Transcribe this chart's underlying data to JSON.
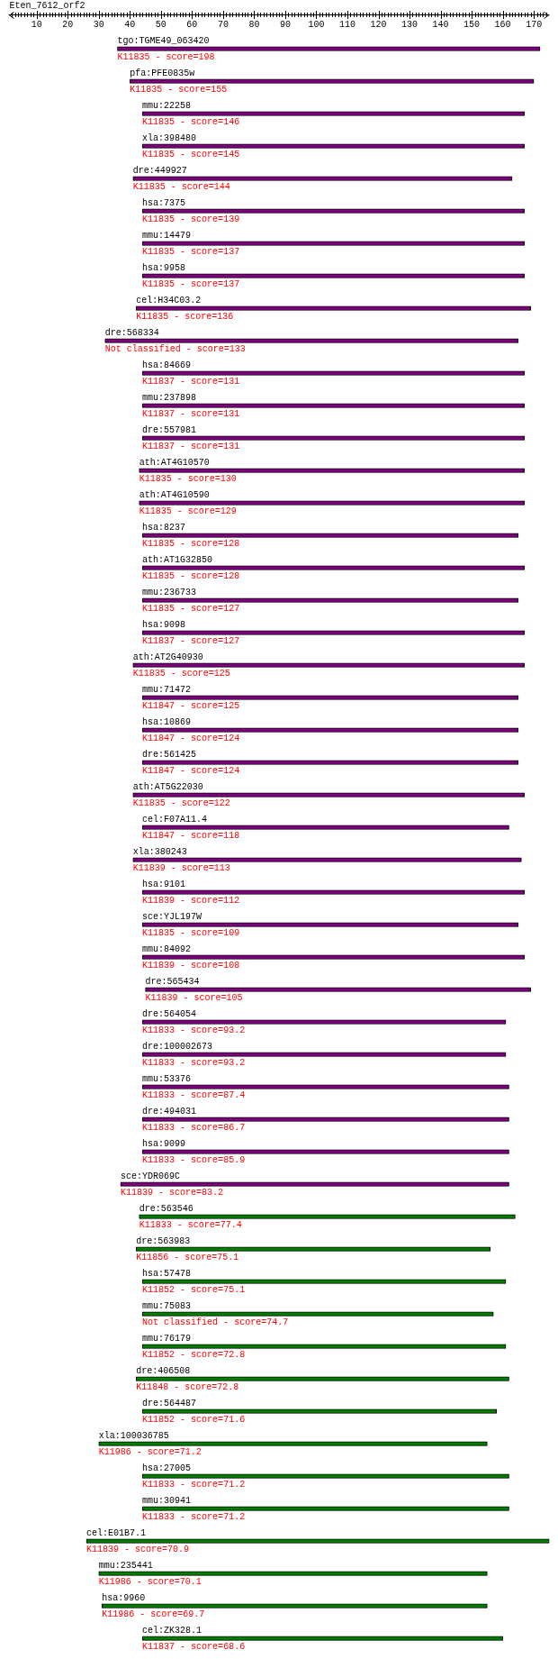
{
  "chart_data": {
    "type": "bar",
    "title": "Eten_7612_orf2",
    "orientation": "horizontal",
    "categories": [
      "tgo:TGME49_063420",
      "pfa:PFE0835w",
      "mmu:22258",
      "xla:398480",
      "dre:449927",
      "hsa:7375",
      "mmu:14479",
      "hsa:9958",
      "cel:H34C03.2",
      "dre:568334",
      "hsa:84669",
      "mmu:237898",
      "dre:557981",
      "ath:AT4G10570",
      "ath:AT4G10590",
      "hsa:8237",
      "ath:AT1G32850",
      "mmu:236733",
      "hsa:9098",
      "ath:AT2G40930",
      "mmu:71472",
      "hsa:10869",
      "dre:561425",
      "ath:AT5G22030",
      "cel:F07A11.4",
      "xla:380243",
      "hsa:9101",
      "sce:YJL197W",
      "mmu:84092",
      "dre:565434",
      "dre:564054",
      "dre:100002673",
      "mmu:53376",
      "dre:494031",
      "hsa:9099",
      "sce:YDR069C",
      "dre:563546",
      "dre:563983",
      "hsa:57478",
      "mmu:75083",
      "mmu:76179",
      "dre:406508",
      "dre:564487",
      "xla:100036785",
      "hsa:27005",
      "mmu:30941",
      "cel:E01B7.1",
      "mmu:235441",
      "hsa:9960",
      "cel:ZK328.1"
    ],
    "base": [
      36,
      40,
      44,
      44,
      41,
      44,
      44,
      44,
      42,
      32,
      44,
      44,
      44,
      43,
      43,
      44,
      44,
      44,
      44,
      41,
      44,
      44,
      44,
      41,
      44,
      41,
      44,
      44,
      44,
      45,
      44,
      44,
      44,
      44,
      44,
      37,
      43,
      42,
      44,
      44,
      44,
      42,
      44,
      30,
      44,
      44,
      26,
      30,
      31,
      44
    ],
    "values": [
      136,
      130,
      123,
      123,
      122,
      123,
      123,
      123,
      127,
      133,
      123,
      123,
      123,
      124,
      124,
      121,
      123,
      121,
      123,
      126,
      121,
      121,
      121,
      126,
      118,
      125,
      123,
      121,
      123,
      124,
      117,
      117,
      118,
      118,
      118,
      125,
      121,
      114,
      117,
      113,
      117,
      120,
      114,
      125,
      118,
      118,
      149,
      125,
      124,
      116
    ],
    "colors": [
      "#800080",
      "#800080",
      "#800080",
      "#800080",
      "#800080",
      "#800080",
      "#800080",
      "#800080",
      "#800080",
      "#800080",
      "#800080",
      "#800080",
      "#800080",
      "#800080",
      "#800080",
      "#800080",
      "#800080",
      "#800080",
      "#800080",
      "#800080",
      "#800080",
      "#800080",
      "#800080",
      "#800080",
      "#800080",
      "#800080",
      "#800080",
      "#800080",
      "#800080",
      "#800080",
      "#800080",
      "#800080",
      "#800080",
      "#800080",
      "#800080",
      "#800080",
      "#008000",
      "#008000",
      "#008000",
      "#008000",
      "#008000",
      "#008000",
      "#008000",
      "#008000",
      "#008000",
      "#008000",
      "#008000",
      "#008000",
      "#008000",
      "#008000"
    ],
    "xlim": [
      1,
      175
    ],
    "xticks": [
      {
        "value": 2,
        "label": null
      },
      {
        "value": 3,
        "label": null
      },
      {
        "value": 4,
        "label": null
      },
      {
        "value": 5,
        "label": null
      },
      {
        "value": 6,
        "label": null
      },
      {
        "value": 7,
        "label": null
      },
      {
        "value": 8,
        "label": null
      },
      {
        "value": 9,
        "label": null
      },
      10,
      {
        "value": 11,
        "label": null
      },
      {
        "value": 12,
        "label": null
      },
      {
        "value": 13,
        "label": null
      },
      {
        "value": 14,
        "label": null
      },
      {
        "value": 15,
        "label": null
      },
      {
        "value": 16,
        "label": null
      },
      {
        "value": 17,
        "label": null
      },
      {
        "value": 18,
        "label": null
      },
      {
        "value": 19,
        "label": null
      },
      20,
      {
        "value": 21,
        "label": null
      },
      {
        "value": 22,
        "label": null
      },
      {
        "value": 23,
        "label": null
      },
      {
        "value": 24,
        "label": null
      },
      {
        "value": 25,
        "label": null
      },
      {
        "value": 26,
        "label": null
      },
      {
        "value": 27,
        "label": null
      },
      {
        "value": 28,
        "label": null
      },
      {
        "value": 29,
        "label": null
      },
      30,
      {
        "value": 31,
        "label": null
      },
      {
        "value": 32,
        "label": null
      },
      {
        "value": 33,
        "label": null
      },
      {
        "value": 34,
        "label": null
      },
      {
        "value": 35,
        "label": null
      },
      {
        "value": 36,
        "label": null
      },
      {
        "value": 37,
        "label": null
      },
      {
        "value": 38,
        "label": null
      },
      {
        "value": 39,
        "label": null
      },
      40,
      {
        "value": 41,
        "label": null
      },
      {
        "value": 42,
        "label": null
      },
      {
        "value": 43,
        "label": null
      },
      {
        "value": 44,
        "label": null
      },
      {
        "value": 45,
        "label": null
      },
      {
        "value": 46,
        "label": null
      },
      {
        "value": 47,
        "label": null
      },
      {
        "value": 48,
        "label": null
      },
      {
        "value": 49,
        "label": null
      },
      50,
      {
        "value": 51,
        "label": null
      },
      {
        "value": 52,
        "label": null
      },
      {
        "value": 53,
        "label": null
      },
      {
        "value": 54,
        "label": null
      },
      {
        "value": 55,
        "label": null
      },
      {
        "value": 56,
        "label": null
      },
      {
        "value": 57,
        "label": null
      },
      {
        "value": 58,
        "label": null
      },
      {
        "value": 59,
        "label": null
      },
      60,
      {
        "value": 61,
        "label": null
      },
      {
        "value": 62,
        "label": null
      },
      {
        "value": 63,
        "label": null
      },
      {
        "value": 64,
        "label": null
      },
      {
        "value": 65,
        "label": null
      },
      {
        "value": 66,
        "label": null
      },
      {
        "value": 67,
        "label": null
      },
      {
        "value": 68,
        "label": null
      },
      {
        "value": 69,
        "label": null
      },
      70,
      {
        "value": 71,
        "label": null
      },
      {
        "value": 72,
        "label": null
      },
      {
        "value": 73,
        "label": null
      },
      {
        "value": 74,
        "label": null
      },
      {
        "value": 75,
        "label": null
      },
      {
        "value": 76,
        "label": null
      },
      {
        "value": 77,
        "label": null
      },
      {
        "value": 78,
        "label": null
      },
      {
        "value": 79,
        "label": null
      },
      80,
      {
        "value": 81,
        "label": null
      },
      {
        "value": 82,
        "label": null
      },
      {
        "value": 83,
        "label": null
      },
      {
        "value": 84,
        "label": null
      },
      {
        "value": 85,
        "label": null
      },
      {
        "value": 86,
        "label": null
      },
      {
        "value": 87,
        "label": null
      },
      {
        "value": 88,
        "label": null
      },
      {
        "value": 89,
        "label": null
      },
      90,
      {
        "value": 91,
        "label": null
      },
      {
        "value": 92,
        "label": null
      },
      {
        "value": 93,
        "label": null
      },
      {
        "value": 94,
        "label": null
      },
      {
        "value": 95,
        "label": null
      },
      {
        "value": 96,
        "label": null
      },
      {
        "value": 97,
        "label": null
      },
      {
        "value": 98,
        "label": null
      },
      {
        "value": 99,
        "label": null
      },
      100,
      {
        "value": 101,
        "label": null
      },
      {
        "value": 102,
        "label": null
      },
      {
        "value": 103,
        "label": null
      },
      {
        "value": 104,
        "label": null
      },
      {
        "value": 105,
        "label": null
      },
      {
        "value": 106,
        "label": null
      },
      {
        "value": 107,
        "label": null
      },
      {
        "value": 108,
        "label": null
      },
      {
        "value": 109,
        "label": null
      },
      110,
      {
        "value": 111,
        "label": null
      },
      {
        "value": 112,
        "label": null
      },
      {
        "value": 113,
        "label": null
      },
      {
        "value": 114,
        "label": null
      },
      {
        "value": 115,
        "label": null
      },
      {
        "value": 116,
        "label": null
      },
      {
        "value": 117,
        "label": null
      },
      {
        "value": 118,
        "label": null
      },
      {
        "value": 119,
        "label": null
      },
      120,
      {
        "value": 121,
        "label": null
      },
      {
        "value": 122,
        "label": null
      },
      {
        "value": 123,
        "label": null
      },
      {
        "value": 124,
        "label": null
      },
      {
        "value": 125,
        "label": null
      },
      {
        "value": 126,
        "label": null
      },
      {
        "value": 127,
        "label": null
      },
      {
        "value": 128,
        "label": null
      },
      {
        "value": 129,
        "label": null
      },
      130,
      {
        "value": 131,
        "label": null
      },
      {
        "value": 132,
        "label": null
      },
      {
        "value": 133,
        "label": null
      },
      {
        "value": 134,
        "label": null
      },
      {
        "value": 135,
        "label": null
      },
      {
        "value": 136,
        "label": null
      },
      {
        "value": 137,
        "label": null
      },
      {
        "value": 138,
        "label": null
      },
      {
        "value": 139,
        "label": null
      },
      140,
      {
        "value": 141,
        "label": null
      },
      {
        "value": 142,
        "label": null
      },
      {
        "value": 143,
        "label": null
      },
      {
        "value": 144,
        "label": null
      },
      {
        "value": 145,
        "label": null
      },
      {
        "value": 146,
        "label": null
      },
      {
        "value": 147,
        "label": null
      },
      {
        "value": 148,
        "label": null
      },
      {
        "value": 149,
        "label": null
      },
      150,
      {
        "value": 151,
        "label": null
      },
      {
        "value": 152,
        "label": null
      },
      {
        "value": 153,
        "label": null
      },
      {
        "value": 154,
        "label": null
      },
      {
        "value": 155,
        "label": null
      },
      {
        "value": 156,
        "label": null
      },
      {
        "value": 157,
        "label": null
      },
      {
        "value": 158,
        "label": null
      },
      {
        "value": 159,
        "label": null
      },
      160,
      {
        "value": 161,
        "label": null
      },
      {
        "value": 162,
        "label": null
      },
      {
        "value": 163,
        "label": null
      },
      {
        "value": 164,
        "label": null
      },
      {
        "value": 165,
        "label": null
      },
      {
        "value": 166,
        "label": null
      },
      {
        "value": 167,
        "label": null
      },
      {
        "value": 168,
        "label": null
      },
      {
        "value": 169,
        "label": null
      },
      170,
      {
        "value": 171,
        "label": null
      },
      {
        "value": 172,
        "label": null
      },
      {
        "value": 173,
        "label": null
      },
      {
        "value": 174,
        "label": null
      }
    ],
    "annotations": [
      "K11835 - score=198",
      "K11835 - score=155",
      "K11835 - score=146",
      "K11835 - score=145",
      "K11835 - score=144",
      "K11835 - score=139",
      "K11835 - score=137",
      "K11835 - score=137",
      "K11835 - score=136",
      "Not classified - score=133",
      "K11837 - score=131",
      "K11837 - score=131",
      "K11837 - score=131",
      "K11835 - score=130",
      "K11835 - score=129",
      "K11835 - score=128",
      "K11835 - score=128",
      "K11835 - score=127",
      "K11837 - score=127",
      "K11835 - score=125",
      "K11847 - score=125",
      "K11847 - score=124",
      "K11847 - score=124",
      "K11835 - score=122",
      "K11847 - score=118",
      "K11839 - score=113",
      "K11839 - score=112",
      "K11835 - score=109",
      "K11839 - score=108",
      "K11839 - score=105",
      "K11833 - score=93.2",
      "K11833 - score=93.2",
      "K11833 - score=87.4",
      "K11833 - score=86.7",
      "K11833 - score=85.9",
      "K11839 - score=83.2",
      "K11833 - score=77.4",
      "K11856 - score=75.1",
      "K11852 - score=75.1",
      "Not classified - score=74.7",
      "K11852 - score=72.8",
      "K11848 - score=72.8",
      "K11852 - score=71.6",
      "K11986 - score=71.2",
      "K11833 - score=71.2",
      "K11833 - score=71.2",
      "K11839 - score=70.9",
      "K11986 - score=70.1",
      "K11986 - score=69.7",
      "K11837 - score=68.6"
    ]
  }
}
